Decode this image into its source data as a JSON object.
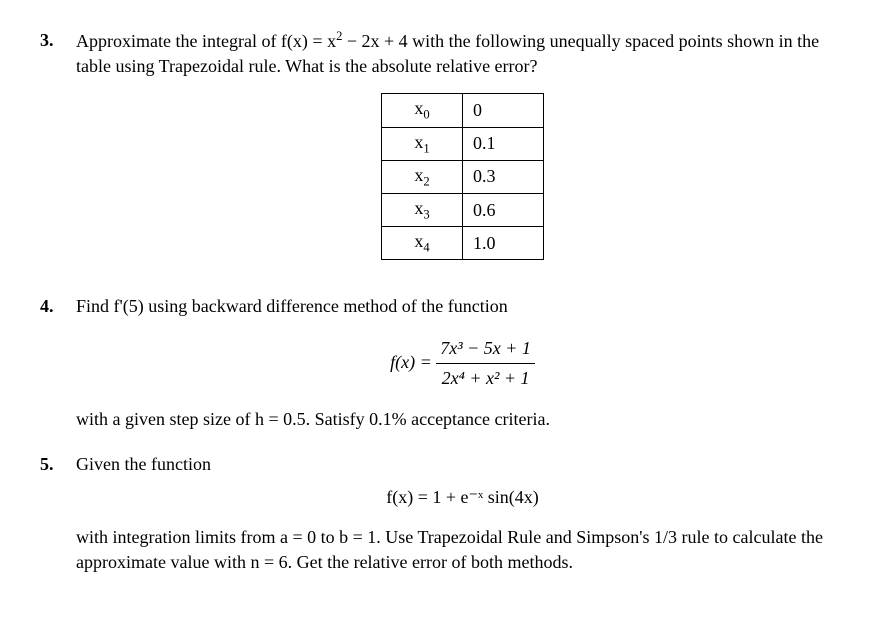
{
  "problems": {
    "p3": {
      "number": "3.",
      "text_pre": "Approximate the integral of f(x) = x",
      "text_mid1": " − 2x + 4 with the following unequally spaced points shown in the table using Trapezoidal rule. What is the absolute relative error?",
      "table": {
        "border_color": "#000000",
        "rows": [
          {
            "label_base": "x",
            "label_sub": "0",
            "value": "0"
          },
          {
            "label_base": "x",
            "label_sub": "1",
            "value": "0.1"
          },
          {
            "label_base": "x",
            "label_sub": "2",
            "value": "0.3"
          },
          {
            "label_base": "x",
            "label_sub": "3",
            "value": "0.6"
          },
          {
            "label_base": "x",
            "label_sub": "4",
            "value": "1.0"
          }
        ]
      }
    },
    "p4": {
      "number": "4.",
      "text1": "Find f'(5) using backward difference method of the function",
      "eq_lhs": "f(x) = ",
      "eq_num": "7x³ − 5x + 1",
      "eq_den": "2x⁴ + x² + 1",
      "text2": "with a given step size of h = 0.5. Satisfy 0.1% acceptance criteria."
    },
    "p5": {
      "number": "5.",
      "text1": "Given the function",
      "eq": "f(x) = 1 + e⁻ˣ sin(4x)",
      "text2": "with integration limits from a = 0 to b = 1. Use Trapezoidal Rule and Simpson's 1/3 rule to calculate the approximate value with n = 6. Get the relative error of both methods."
    }
  },
  "styling": {
    "font_family": "Times New Roman",
    "font_size_pt": 14,
    "text_color": "#000000",
    "background_color": "#ffffff",
    "table_border_color": "#000000"
  }
}
